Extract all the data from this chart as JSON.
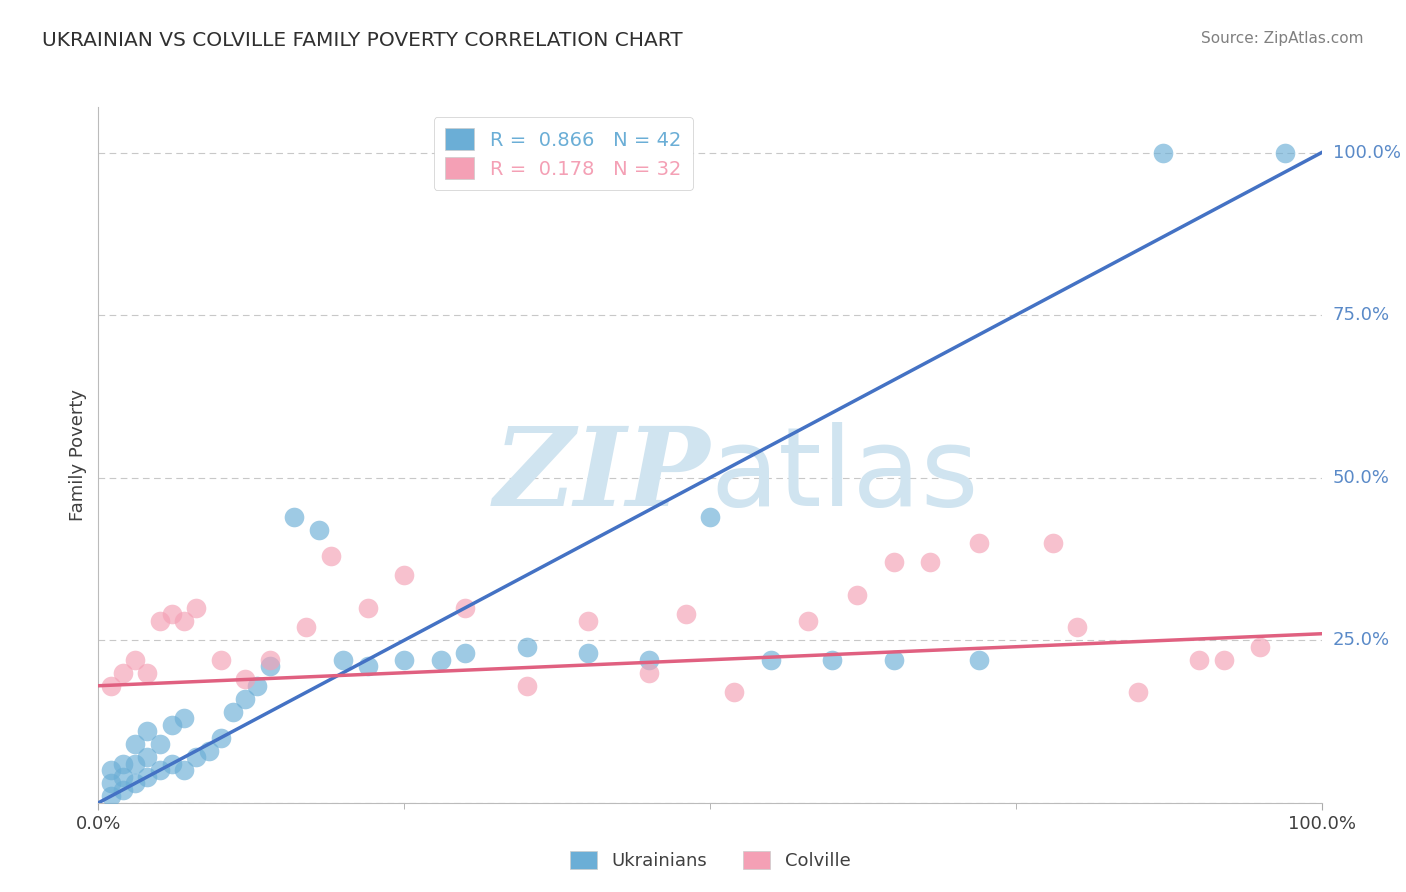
{
  "title": "UKRAINIAN VS COLVILLE FAMILY POVERTY CORRELATION CHART",
  "source": "Source: ZipAtlas.com",
  "ylabel": "Family Poverty",
  "xlim": [
    0,
    100
  ],
  "ylim": [
    0,
    107
  ],
  "x_tick_labels": [
    "0.0%",
    "100.0%"
  ],
  "y_tick_positions": [
    0,
    25,
    50,
    75,
    100
  ],
  "y_tick_labels": [
    "",
    "25.0%",
    "50.0%",
    "75.0%",
    "100.0%"
  ],
  "legend_items": [
    {
      "label": "R =  0.866   N = 42",
      "color": "#6BAED6"
    },
    {
      "label": "R =  0.178   N = 32",
      "color": "#F4A0B5"
    }
  ],
  "legend_bottom": [
    {
      "label": "Ukrainians",
      "color": "#6BAED6"
    },
    {
      "label": "Colville",
      "color": "#F4A0B5"
    }
  ],
  "blue_line": {
    "x0": 0,
    "y0": 0,
    "x1": 100,
    "y1": 100
  },
  "pink_line": {
    "x0": 0,
    "y0": 18,
    "x1": 100,
    "y1": 26
  },
  "blue_scatter_x": [
    1,
    1,
    1,
    2,
    2,
    2,
    3,
    3,
    3,
    4,
    4,
    4,
    5,
    5,
    6,
    6,
    7,
    7,
    8,
    9,
    10,
    11,
    12,
    13,
    14,
    16,
    18,
    20,
    22,
    25,
    28,
    30,
    35,
    40,
    45,
    50,
    55,
    60,
    65,
    72,
    87,
    97
  ],
  "blue_scatter_y": [
    1,
    3,
    5,
    2,
    4,
    6,
    3,
    6,
    9,
    4,
    7,
    11,
    5,
    9,
    6,
    12,
    5,
    13,
    7,
    8,
    10,
    14,
    16,
    18,
    21,
    44,
    42,
    22,
    21,
    22,
    22,
    23,
    24,
    23,
    22,
    44,
    22,
    22,
    22,
    22,
    100,
    100
  ],
  "pink_scatter_x": [
    1,
    2,
    3,
    4,
    5,
    6,
    7,
    8,
    10,
    12,
    14,
    17,
    19,
    22,
    25,
    30,
    35,
    40,
    45,
    48,
    52,
    58,
    62,
    65,
    68,
    72,
    78,
    80,
    85,
    90,
    92,
    95
  ],
  "pink_scatter_y": [
    18,
    20,
    22,
    20,
    28,
    29,
    28,
    30,
    22,
    19,
    22,
    27,
    38,
    30,
    35,
    30,
    18,
    28,
    20,
    29,
    17,
    28,
    32,
    37,
    37,
    40,
    40,
    27,
    17,
    22,
    22,
    24
  ],
  "background_color": "#FFFFFF",
  "blue_color": "#6BAED6",
  "pink_color": "#F4A0B5",
  "blue_line_color": "#4472C4",
  "pink_line_color": "#E06080",
  "grid_color": "#C8C8C8",
  "title_color": "#303030",
  "source_color": "#808080",
  "watermark_color": "#D0E4F0",
  "right_label_color": "#5A8AC8"
}
